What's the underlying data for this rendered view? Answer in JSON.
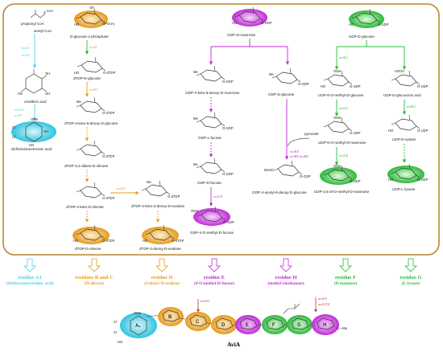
{
  "compounds": {
    "propionyl_coa": "propionyl CoA",
    "acetyl_coa": "acetyl CoA",
    "orsellinic_acid": "orsellinic acid",
    "dichloroisoeverninic_acid": "dichloroisoeverninic acid",
    "d_glucose_1_phosphate": "D-glucose-1-phosphate",
    "dtdp_d_glucose": "dTDP-D-glucose",
    "dtdp_4_keto_6_deoxy_d_glucose": "dTDP-4-keto-6-deoxy-D-glucose",
    "dtdp_3_4_diketo_d_olivose": "dTDP-3,4-diketo-D-olivose",
    "dtdp_4_keto_d_olivose": "dTDP-4-keto-D-olivose",
    "dtdp_4_keto_2_deoxy_d_evalose": "dTDP-4-keto-2-deoxy-D-evalose",
    "dtdp_d_olivose": "dTDP-D-olivose",
    "dtdp_2_deoxy_d_evalose": "dTDP-2-deoxy-D-evalose",
    "gdp_d_mannose": "GDP-D-mannose",
    "gdp_4_keto_6_deoxy_d_mannose": "GDP-4-keto-6-deoxy-D-mannose",
    "gdp_l_fucose": "GDP-L-fucose",
    "gdp_d_fucose": "GDP-D-fucose",
    "gdp_4_o_methyl_d_fucose": "GDP-4-O-methyl-D-fucose",
    "gdp_d_glucose": "GDP-D-glucose",
    "pyruvate": "pyruvate",
    "gdp_4_acetyl_6_deoxy_d_glucose": "GDP-4-acetyl-6-deoxy-D-glucose",
    "udp_d_glucose": "UDP-D-glucose",
    "udp_6_o_methyl_d_glucose": "UDP-6-O-methyl-D-glucose",
    "udp_6_o_methyl_d_mannose": "UDP-6-O-methyl-D-mannose",
    "udp_2_6_di_o_methyl_d_mannose": "UDP-2,6-di-O-methyl-D-mannose",
    "udp_d_glucuronic_acid": "UDP-D-glucuronic acid",
    "udp_d_xylose": "UDP-D-xylose",
    "udp_l_lyxose": "UDP-L-lyxose"
  },
  "enzymes": {
    "avil1": "aviL1",
    "avil2": "aviL2",
    "avig4": "aviG4",
    "avih": "aviH",
    "avid": "aviD",
    "avie1": "aviE1",
    "avie3": "aviE3",
    "avie4": "aviE4",
    "avig5": "aviG5",
    "avib1b2": "aviB1/aviB2",
    "avie2": "aviE2",
    "avig2": "aviG2",
    "avig6": "aviG6",
    "avio1": "aviO1",
    "avio1b": "aviO1",
    "avigt4": "aviGT4"
  },
  "residues": [
    {
      "title": "residue A1",
      "desc": "(dichloroisoeverninic acid)",
      "color": "#4dd0e8"
    },
    {
      "title": "residues B and C",
      "desc": "(D-olivose)",
      "color": "#e89a1a"
    },
    {
      "title": "residue D",
      "desc": "(2-deoxy-D-evalose)",
      "color": "#e89a1a"
    },
    {
      "title": "residue E",
      "desc": "(4-O-methyl-D-fucose)",
      "color": "#c02ad8"
    },
    {
      "title": "residue H",
      "desc": "(methyl-eurekanate)",
      "color": "#c02ad8"
    },
    {
      "title": "residue F",
      "desc": "(D-mannose)",
      "color": "#2ab83a"
    },
    {
      "title": "residue G",
      "desc": "(L-lyxose)",
      "color": "#2ab83a"
    }
  ],
  "product": {
    "name": "AviA",
    "ring_labels": [
      "A₁",
      "B",
      "C",
      "D",
      "E",
      "F",
      "G",
      "H"
    ],
    "enzyme_left": "aviO1",
    "enzyme_right_1": "aviO1",
    "enzyme_right_2": "aviGT4"
  },
  "colors": {
    "frame": "#b8862a",
    "cyan": "#4dd0e8",
    "orange": "#e89a1a",
    "magenta": "#c02ad8",
    "green": "#2ab83a"
  },
  "icons": [
    "hexose-ring-icon",
    "aromatic-ring-icon",
    "reaction-arrow-icon",
    "hollow-down-arrow-icon"
  ]
}
